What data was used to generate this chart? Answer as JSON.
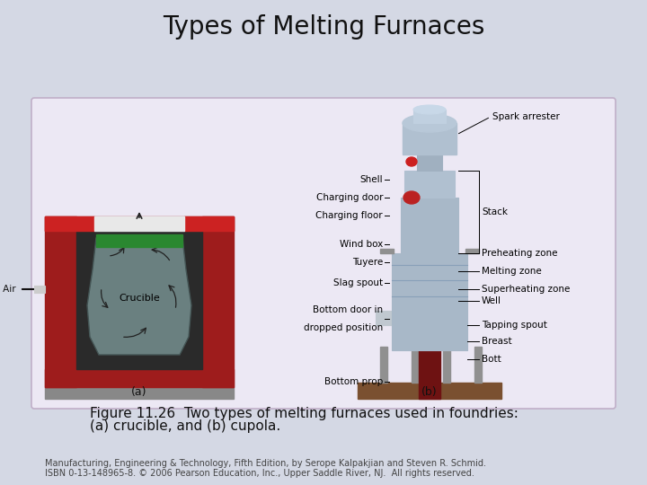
{
  "title": "Types of Melting Furnaces",
  "title_fontsize": 20,
  "caption_line1": "Figure 11.26  Two types of melting furnaces used in foundries:",
  "caption_line2": "(a) crucible, and (b) cupola.",
  "caption_fontsize": 11,
  "footer_line1": "Manufacturing, Engineering & Technology, Fifth Edition, by Serope Kalpakjian and Steven R. Schmid.",
  "footer_line2": "ISBN 0-13-148965-8. © 2006 Pearson Education, Inc., Upper Saddle River, NJ.  All rights reserved.",
  "footer_fontsize": 7,
  "bg_color": "#d4d8e4",
  "box_facecolor": "#ece8f4",
  "box_edgecolor": "#c0afc8",
  "title_color": "#111111",
  "caption_color": "#111111",
  "footer_color": "#444444"
}
